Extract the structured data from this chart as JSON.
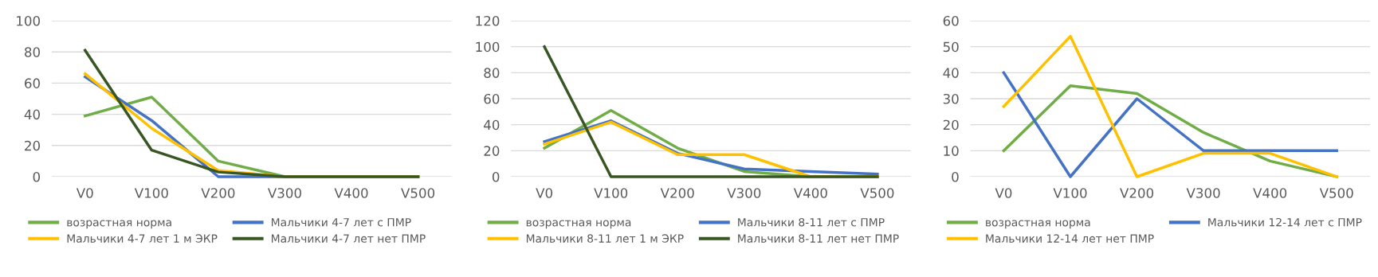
{
  "chart_data": [
    {
      "type": "line",
      "categories": [
        "V0",
        "V100",
        "V200",
        "V300",
        "V400",
        "V500"
      ],
      "ylim": [
        0,
        100
      ],
      "yticks": [
        0,
        20,
        40,
        60,
        80,
        100
      ],
      "grid": "y",
      "legend": "bottom",
      "marker": "none",
      "line_style": "solid",
      "series": [
        {
          "name": "возрастная норма",
          "color": "#70ad47",
          "values": [
            39,
            51,
            10,
            0,
            0,
            0
          ]
        },
        {
          "name": "Мальчики 4-7 лет с ПМР",
          "color": "#4472c4",
          "values": [
            64,
            36,
            0,
            0,
            0,
            0
          ]
        },
        {
          "name": "Мальчики 4-7 лет 1 м ЭКР",
          "color": "#ffc000",
          "values": [
            66,
            31,
            4,
            0,
            0,
            0
          ]
        },
        {
          "name": "Мальчики 4-7 лет нет ПМР",
          "color": "#375623",
          "values": [
            81,
            17,
            3,
            0,
            0,
            0
          ]
        }
      ]
    },
    {
      "type": "line",
      "categories": [
        "V0",
        "V100",
        "V200",
        "V300",
        "V400",
        "V500"
      ],
      "ylim": [
        0,
        120
      ],
      "yticks": [
        0,
        20,
        40,
        60,
        80,
        100,
        120
      ],
      "grid": "y",
      "legend": "bottom",
      "marker": "none",
      "line_style": "solid",
      "series": [
        {
          "name": "возрастная норма",
          "color": "#70ad47",
          "values": [
            22,
            51,
            22,
            4,
            0,
            0
          ]
        },
        {
          "name": "Мальчики 8-11 лет с ПМР",
          "color": "#4472c4",
          "values": [
            27,
            43,
            18,
            6,
            4,
            2
          ]
        },
        {
          "name": "Мальчики 8-11 лет 1 м ЭКР",
          "color": "#ffc000",
          "values": [
            25,
            42,
            17,
            17,
            0,
            0
          ]
        },
        {
          "name": "Мальчики 8-11 лет нет ПМР",
          "color": "#375623",
          "values": [
            100,
            0,
            0,
            0,
            0,
            0
          ]
        }
      ]
    },
    {
      "type": "line",
      "categories": [
        "V0",
        "V100",
        "V200",
        "V300",
        "V400",
        "V500"
      ],
      "ylim": [
        0,
        60
      ],
      "yticks": [
        0,
        10,
        20,
        30,
        40,
        50,
        60
      ],
      "grid": "y",
      "legend": "bottom",
      "marker": "none",
      "line_style": "solid",
      "series": [
        {
          "name": "возрастная норма",
          "color": "#70ad47",
          "values": [
            10,
            35,
            32,
            17,
            6,
            0
          ]
        },
        {
          "name": "Мальчики 12-14 лет с ПМР",
          "color": "#4472c4",
          "values": [
            40,
            0,
            30,
            10,
            10,
            10
          ]
        },
        {
          "name": "Мальчики 12-14 лет нет ПМР",
          "color": "#ffc000",
          "values": [
            27,
            54,
            0,
            9,
            9,
            0
          ]
        }
      ]
    }
  ]
}
